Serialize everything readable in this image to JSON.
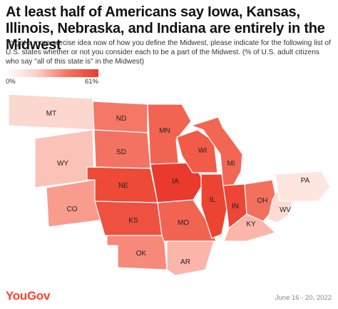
{
  "title": "At least half of Americans say Iowa, Kansas, Illinois, Nebraska, and Indiana are entirely in the Midwest",
  "subtitle": "To get a more precise idea now of how you define the Midwest, please indicate for the following list of U.S. states whether or not you consider each to be a part of the Midwest. (% of U.S. adult citizens who say \"all of this state is\" in the Midwest)",
  "legend": {
    "min_label": "0%",
    "max_label": "61%"
  },
  "states": [
    {
      "abbr": "MT",
      "color": "#fcd7cf"
    },
    {
      "abbr": "WY",
      "color": "#fbc3b8"
    },
    {
      "abbr": "CO",
      "color": "#f99b8d"
    },
    {
      "abbr": "ND",
      "color": "#f47865"
    },
    {
      "abbr": "SD",
      "color": "#f47261"
    },
    {
      "abbr": "NE",
      "color": "#ee4a38"
    },
    {
      "abbr": "KS",
      "color": "#ef5140"
    },
    {
      "abbr": "OK",
      "color": "#f6897a"
    },
    {
      "abbr": "MN",
      "color": "#f26452"
    },
    {
      "abbr": "IA",
      "color": "#ea3a2d"
    },
    {
      "abbr": "MO",
      "color": "#f26452"
    },
    {
      "abbr": "AR",
      "color": "#fbb5aa"
    },
    {
      "abbr": "WI",
      "color": "#f15b48"
    },
    {
      "abbr": "IL",
      "color": "#ed4333"
    },
    {
      "abbr": "MI",
      "color": "#f26754"
    },
    {
      "abbr": "IN",
      "color": "#ed4636"
    },
    {
      "abbr": "OH",
      "color": "#f3705d"
    },
    {
      "abbr": "KY",
      "color": "#fbb5aa"
    },
    {
      "abbr": "WV",
      "color": "#fddbd4"
    },
    {
      "abbr": "PA",
      "color": "#fde5e0"
    }
  ],
  "brand": "YouGov",
  "date": "June 16 - 20, 2022"
}
